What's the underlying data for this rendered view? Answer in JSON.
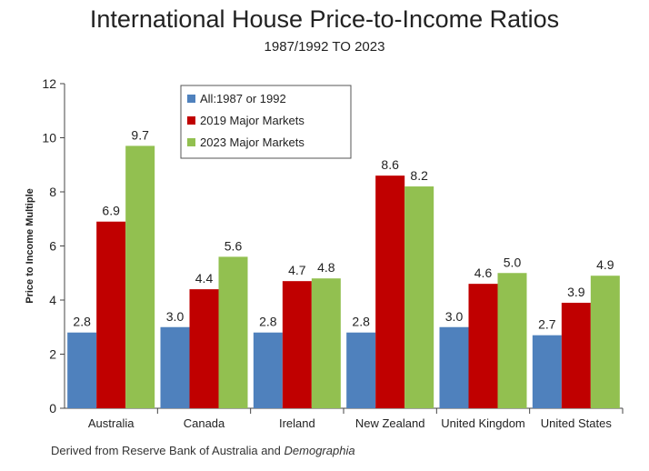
{
  "chart_data": {
    "type": "bar",
    "title": "International House Price-to-Income Ratios",
    "subtitle": "1987/1992 TO 2023",
    "ylabel": "Price to Income Multiple",
    "xlabel": "",
    "ylim": [
      0,
      12
    ],
    "yticks": [
      "0",
      "2",
      "4",
      "6",
      "8",
      "10",
      "12"
    ],
    "categories": [
      "Australia",
      "Canada",
      "Ireland",
      "New Zealand",
      "United Kingdom",
      "United States"
    ],
    "series": [
      {
        "name": "All:1987 or 1992",
        "color": "#4f81bd",
        "values": [
          2.8,
          3.0,
          2.8,
          2.8,
          3.0,
          2.7
        ],
        "labels": [
          "2.8",
          "3.0",
          "2.8",
          "2.8",
          "3.0",
          "2.7"
        ]
      },
      {
        "name": "2019 Major Markets",
        "color": "#c00000",
        "values": [
          6.9,
          4.4,
          4.7,
          8.6,
          4.6,
          3.9
        ],
        "labels": [
          "6.9",
          "4.4",
          "4.7",
          "8.6",
          "4.6",
          "3.9"
        ]
      },
      {
        "name": "2023 Major Markets",
        "color": "#92c050",
        "values": [
          9.7,
          5.6,
          4.8,
          8.2,
          5.0,
          4.9
        ],
        "labels": [
          "9.7",
          "5.6",
          "4.8",
          "8.2",
          "5.0",
          "4.9"
        ]
      }
    ],
    "legend": "top-left",
    "grid": false
  },
  "source": {
    "prefix": "Derived from Reserve Bank of Australia and ",
    "emphasis": "Demographia"
  }
}
